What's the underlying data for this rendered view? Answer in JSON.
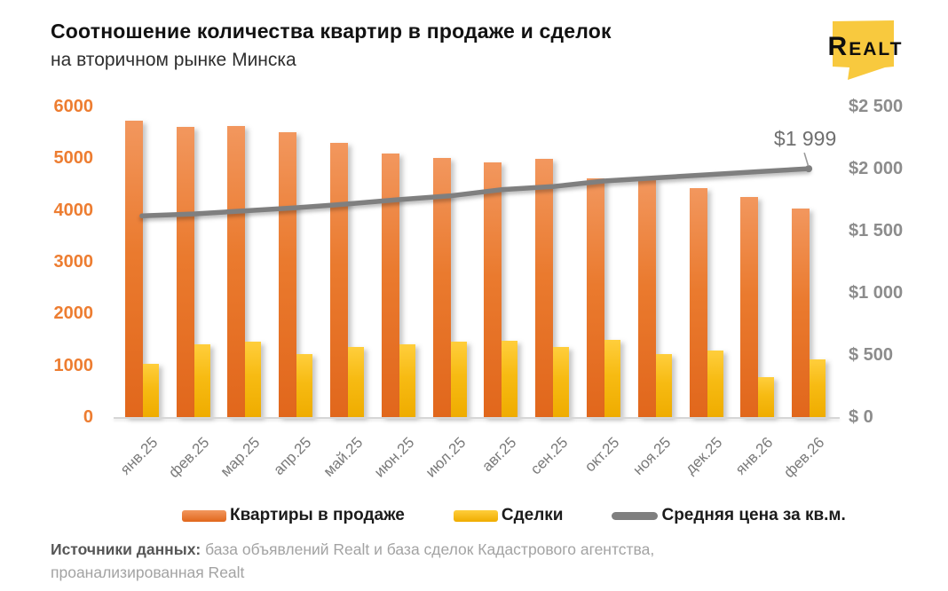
{
  "header": {
    "title": "Соотношение количества квартир в продаже и сделок",
    "subtitle": "на вторичном рынке Минска"
  },
  "logo": {
    "brand": "Realt",
    "bubble_color": "#F8C93E"
  },
  "chart_data": {
    "type": "bar",
    "title": "Соотношение количества квартир в продаже и сделок на вторичном рынке Минска",
    "categories": [
      "янв.25",
      "фев.25",
      "мар.25",
      "апр.25",
      "май.25",
      "июн.25",
      "июл.25",
      "авг.25",
      "сен.25",
      "окт.25",
      "ноя.25",
      "дек.25",
      "янв.26",
      "фев.26"
    ],
    "series": [
      {
        "name": "Квартиры в продаже",
        "type": "bar",
        "axis": "left",
        "color": "#ED7D31",
        "values": [
          5720,
          5600,
          5630,
          5500,
          5300,
          5100,
          5000,
          4920,
          4990,
          4620,
          4590,
          4430,
          4260,
          4030
        ]
      },
      {
        "name": "Сделки",
        "type": "bar",
        "axis": "left",
        "color": "#FFC000",
        "values": [
          1030,
          1400,
          1460,
          1220,
          1350,
          1400,
          1460,
          1470,
          1350,
          1490,
          1210,
          1290,
          770,
          1110
        ]
      },
      {
        "name": "Средняя цена за кв.м.",
        "type": "line",
        "axis": "right",
        "color": "#7F7F7F",
        "values": [
          1620,
          1635,
          1660,
          1685,
          1715,
          1750,
          1780,
          1830,
          1855,
          1900,
          1925,
          1950,
          1975,
          1999
        ]
      }
    ],
    "left_axis": {
      "min": 0,
      "max": 6000,
      "step": 1000,
      "color": "#ED7D31",
      "ticks": [
        "0",
        "1000",
        "2000",
        "3000",
        "4000",
        "5000",
        "6000"
      ]
    },
    "right_axis": {
      "min": 0,
      "max": 2500,
      "step": 500,
      "color": "#8C8C8C",
      "ticks": [
        "$ 0",
        "$ 500",
        "$1 000",
        "$1 500",
        "$2 000",
        "$2 500"
      ]
    },
    "annotation": {
      "text": "$1 999",
      "series": "Средняя цена за кв.м.",
      "category": "фев.26"
    },
    "grid": false,
    "legend_position": "bottom"
  },
  "footer": {
    "source_label": "Источники данных:",
    "source_text": " база объявлений Realt и база сделок Кадастрового агентства, проанализированная Realt"
  }
}
